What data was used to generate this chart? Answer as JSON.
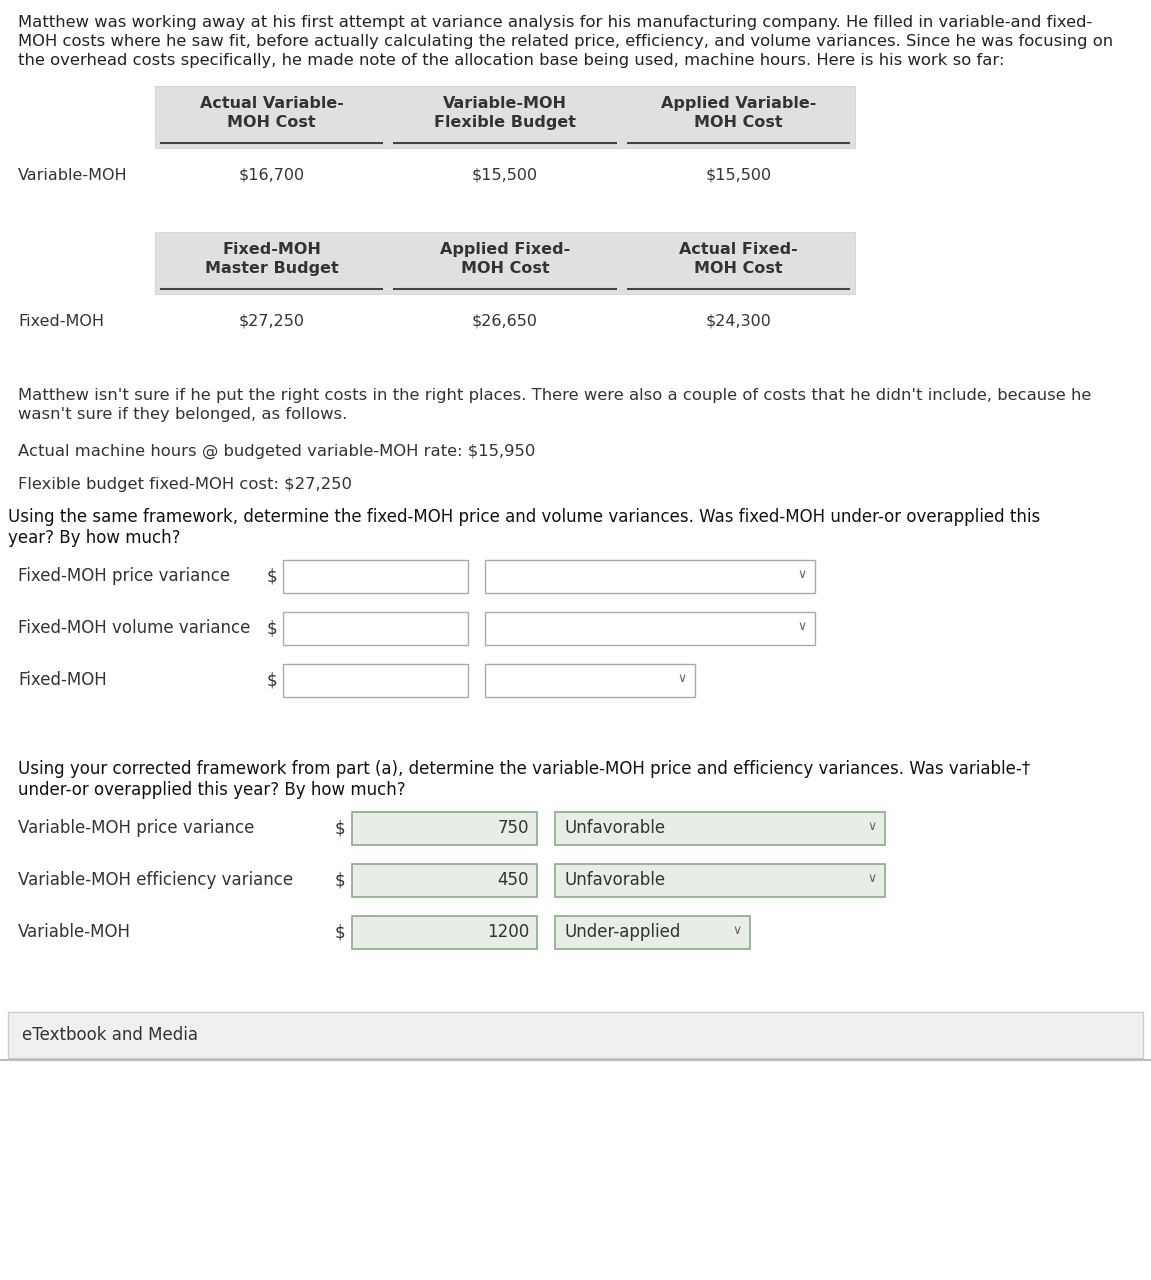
{
  "bg_color": "#ffffff",
  "text_color": "#333333",
  "table_bg": "#e0e0e0",
  "para1_lines": [
    "Matthew was working away at his first attempt at variance analysis for his manufacturing company. He filled in variable-and fixed-",
    "MOH costs where he saw fit, before actually calculating the related price, efficiency, and volume variances. Since he was focusing on",
    "the overhead costs specifically, he made note of the allocation base being used, machine hours. Here is his work so far:"
  ],
  "table1_headers": [
    "Actual Variable-\nMOH Cost",
    "Variable-MOH\nFlexible Budget",
    "Applied Variable-\nMOH Cost"
  ],
  "table1_label": "Variable-MOH",
  "table1_values": [
    "$16,700",
    "$15,500",
    "$15,500"
  ],
  "table2_headers": [
    "Fixed-MOH\nMaster Budget",
    "Applied Fixed-\nMOH Cost",
    "Actual Fixed-\nMOH Cost"
  ],
  "table2_label": "Fixed-MOH",
  "table2_values": [
    "$27,250",
    "$26,650",
    "$24,300"
  ],
  "para2_lines": [
    "Matthew isn't sure if he put the right costs in the right places. There were also a couple of costs that he didn't include, because he",
    "wasn't sure if they belonged, as follows."
  ],
  "line1": "Actual machine hours @ budgeted variable-MOH rate: $15,950",
  "line2": "Flexible budget fixed-MOH cost: $27,250",
  "para3_lines": [
    "Using the same framework, determine the fixed-MOH price and volume variances. Was fixed-MOH under-or overapplied this",
    "year? By how much?"
  ],
  "fixed_rows": [
    {
      "label": "Fixed-MOH price variance",
      "value": "",
      "dropdown": "",
      "dd_wide": true
    },
    {
      "label": "Fixed-MOH volume variance",
      "value": "",
      "dropdown": "",
      "dd_wide": true
    },
    {
      "label": "Fixed-MOH",
      "value": "",
      "dropdown": "",
      "dd_wide": false
    }
  ],
  "para4_lines": [
    "Using your corrected framework from part (a), determine the variable-MOH price and efficiency variances. Was variable-—",
    "under-or overapplied this year? By how much?"
  ],
  "variable_rows": [
    {
      "label": "Variable-MOH price variance",
      "value": "750",
      "dropdown": "Unfavorable",
      "dd_wide": true
    },
    {
      "label": "Variable-MOH efficiency variance",
      "value": "450",
      "dropdown": "Unfavorable",
      "dd_wide": true
    },
    {
      "label": "Variable-MOH",
      "value": "1200",
      "dropdown": "Under-applied",
      "dd_wide": false
    }
  ],
  "etextbook": "eTextbook and Media",
  "font_size_para": 11.8,
  "font_size_table": 11.5,
  "font_size_input": 12.0
}
